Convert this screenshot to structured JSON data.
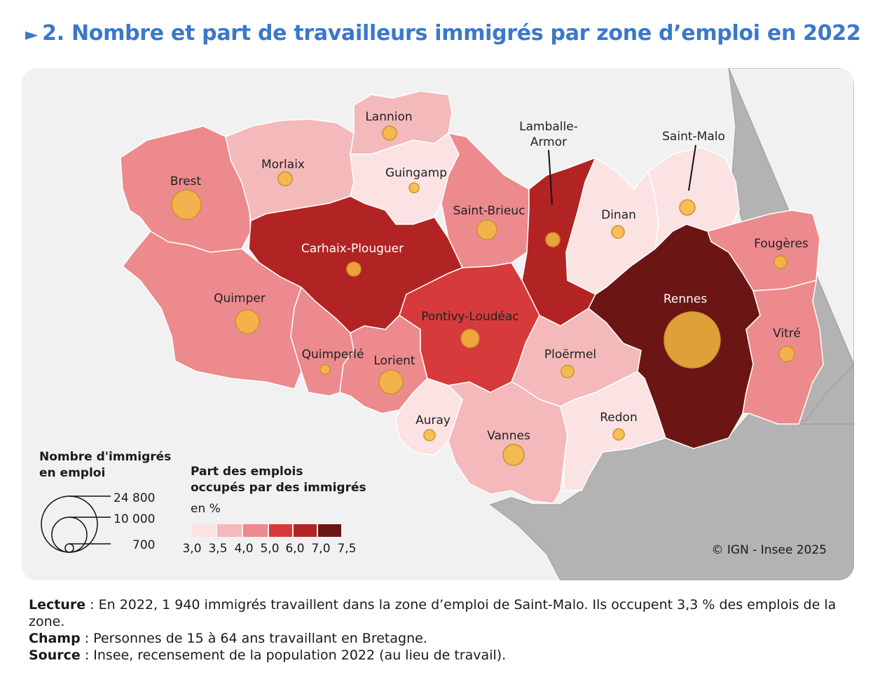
{
  "title": {
    "marker": "►",
    "text": "2. Nombre et part de travailleurs immigrés par zone d’emploi en 2022"
  },
  "colors": {
    "title": "#3a78c9",
    "sea": "#f1f1f1",
    "neighbor_land": "#b3b3b3",
    "bubble_fill": "#f5b940",
    "bubble_stroke": "#c9932a",
    "class_colors": [
      "#fbe3e3",
      "#f4b9ba",
      "#ec8a8d",
      "#d63a3a",
      "#b22424",
      "#6b1515"
    ]
  },
  "zones": [
    {
      "name": "Brest",
      "class": 2
    },
    {
      "name": "Morlaix",
      "class": 1
    },
    {
      "name": "Lannion",
      "class": 1
    },
    {
      "name": "Guingamp",
      "class": 0
    },
    {
      "name": "Saint-Brieuc",
      "class": 2
    },
    {
      "name": "Lamballe-Armor",
      "label_lines": [
        "Lamballe-",
        "Armor"
      ],
      "class": 4
    },
    {
      "name": "Dinan",
      "class": 0
    },
    {
      "name": "Saint-Malo",
      "class": 0
    },
    {
      "name": "Fougères",
      "class": 2
    },
    {
      "name": "Carhaix-Plouguer",
      "class": 4
    },
    {
      "name": "Quimper",
      "class": 2
    },
    {
      "name": "Quimperlé",
      "class": 2
    },
    {
      "name": "Lorient",
      "class": 2
    },
    {
      "name": "Pontivy-Loudéac",
      "class": 3
    },
    {
      "name": "Ploërmel",
      "class": 1
    },
    {
      "name": "Rennes",
      "class": 5
    },
    {
      "name": "Vitré",
      "class": 2
    },
    {
      "name": "Auray",
      "class": 0
    },
    {
      "name": "Vannes",
      "class": 1
    },
    {
      "name": "Redon",
      "class": 0
    }
  ],
  "legend_size": {
    "title_lines": [
      "Nombre d'immigrés",
      "en emploi"
    ],
    "values": [
      "24 800",
      "10 000",
      "700"
    ]
  },
  "legend_color": {
    "title_lines": [
      "Part des emplois",
      "occupés par des immigrés"
    ],
    "unit": "en %",
    "breaks": [
      "3,0",
      "3,5",
      "4,0",
      "5,0",
      "6,0",
      "7,0",
      "7,5"
    ]
  },
  "copyright": "© IGN - Insee 2025",
  "notes": {
    "lecture_label": "Lecture",
    "lecture_text": " : En 2022, 1 940 immigrés travaillent dans la zone d’emploi de Saint-Malo. Ils occupent 3,3 % des emplois de la zone.",
    "champ_label": "Champ",
    "champ_text": " : Personnes de 15 à 64 ans travaillant en Bretagne.",
    "source_label": "Source",
    "source_text": " : Insee, recensement de la population 2022 (au lieu de travail)."
  }
}
